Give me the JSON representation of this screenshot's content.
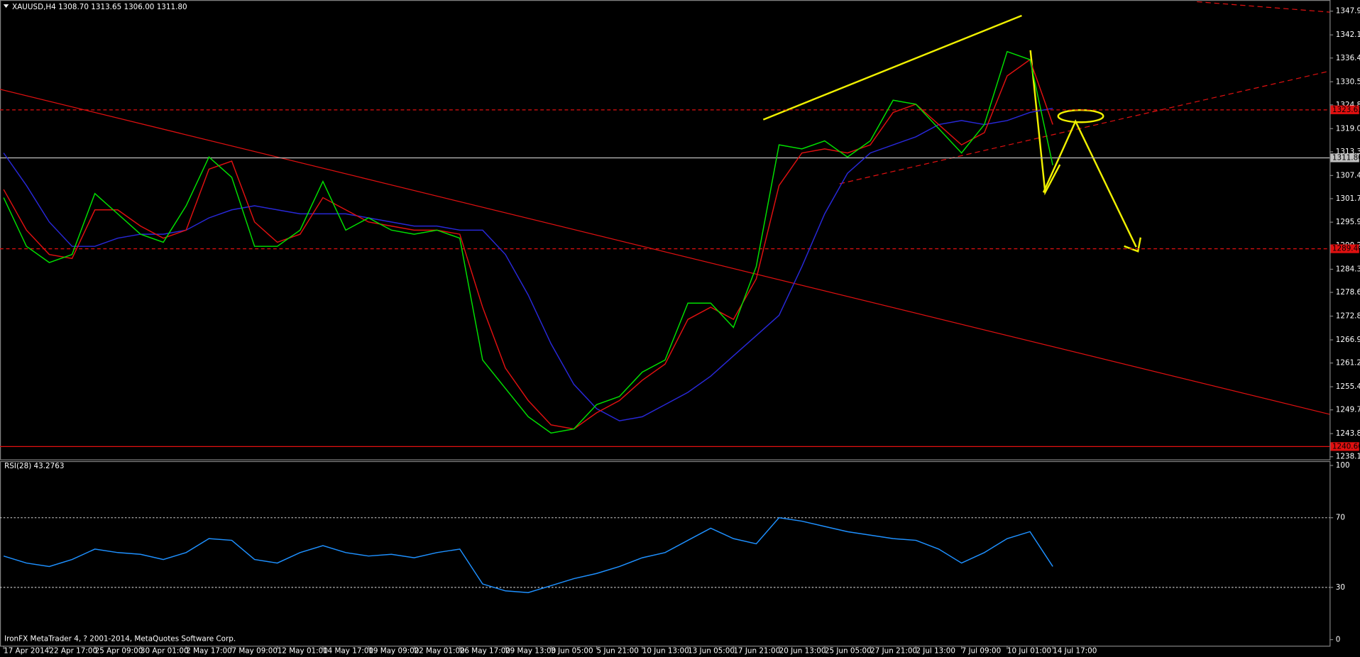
{
  "chart_data": [
    {
      "type": "line",
      "title": "XAUUSD,H4  1308.70 1313.65 1306.00 1311.80",
      "footer": "IronFX MetaTrader 4, ? 2001-2014, MetaQuotes Software Corp.",
      "xlim": [
        -0.08,
        29.07
      ],
      "xticks": [
        {
          "value": 0,
          "label": "17 Apr 2014"
        },
        {
          "value": 1,
          "label": "22 Apr 17:00"
        },
        {
          "value": 2,
          "label": "25 Apr 09:00"
        },
        {
          "value": 3,
          "label": "30 Apr 01:00"
        },
        {
          "value": 4,
          "label": "2 May 17:00"
        },
        {
          "value": 5,
          "label": "7 May 09:00"
        },
        {
          "value": 6,
          "label": "12 May 01:00"
        },
        {
          "value": 7,
          "label": "14 May 17:00"
        },
        {
          "value": 8,
          "label": "19 May 09:00"
        },
        {
          "value": 9,
          "label": "22 May 01:00"
        },
        {
          "value": 10,
          "label": "26 May 17:00"
        },
        {
          "value": 11,
          "label": "29 May 13:00"
        },
        {
          "value": 12,
          "label": "3 Jun 05:00"
        },
        {
          "value": 13,
          "label": "5 Jun 21:00"
        },
        {
          "value": 14,
          "label": "10 Jun 13:00"
        },
        {
          "value": 15,
          "label": "13 Jun 05:00"
        },
        {
          "value": 16,
          "label": "17 Jun 21:00"
        },
        {
          "value": 17,
          "label": "20 Jun 13:00"
        },
        {
          "value": 18,
          "label": "25 Jun 05:00"
        },
        {
          "value": 19,
          "label": "27 Jun 21:00"
        },
        {
          "value": 20,
          "label": "2 Jul 13:00"
        },
        {
          "value": 21,
          "label": "7 Jul 09:00"
        },
        {
          "value": 22,
          "label": "10 Jul 01:00"
        },
        {
          "value": 23,
          "label": "14 Jul 17:00"
        }
      ],
      "ylim": [
        1237.5,
        1350.7
      ],
      "yticks": [
        {
          "value": 1347.95,
          "label": "1347.95"
        },
        {
          "value": 1342.1,
          "label": "1342.10"
        },
        {
          "value": 1336.4,
          "label": "1336.40"
        },
        {
          "value": 1330.55,
          "label": "1330.55"
        },
        {
          "value": 1324.85,
          "label": "1324.85"
        },
        {
          "value": 1319,
          "label": "1319.00"
        },
        {
          "value": 1313.3,
          "label": "1313.30"
        },
        {
          "value": 1307.45,
          "label": "1307.45"
        },
        {
          "value": 1301.75,
          "label": "1301.75"
        },
        {
          "value": 1295.95,
          "label": "1295.95"
        },
        {
          "value": 1290.2,
          "label": "1290.20"
        },
        {
          "value": 1284.35,
          "label": "1284.35"
        },
        {
          "value": 1278.65,
          "label": "1278.65"
        },
        {
          "value": 1272.8,
          "label": "1272.80"
        },
        {
          "value": 1266.95,
          "label": "1266.95"
        },
        {
          "value": 1261.25,
          "label": "1261.25"
        },
        {
          "value": 1255.4,
          "label": "1255.40"
        },
        {
          "value": 1249.7,
          "label": "1249.70"
        },
        {
          "value": 1243.85,
          "label": "1243.85"
        },
        {
          "value": 1238.15,
          "label": "1238.15"
        }
      ],
      "levels": [
        {
          "value": 1323.63,
          "label": "1323.63",
          "color": "#e01010",
          "dashed": true,
          "label_color": "#000"
        },
        {
          "value": 1311.8,
          "label": "1311.80",
          "color": "#c0c0c0",
          "dashed": false,
          "label_color": "#000"
        },
        {
          "value": 1289.4,
          "label": "1289.40",
          "color": "#e01010",
          "dashed": true,
          "label_color": "#000"
        },
        {
          "value": 1240.66,
          "label": "1240.66",
          "color": "#e01010",
          "dashed": false,
          "label_color": "#000"
        }
      ],
      "x": [
        0,
        0.5,
        1,
        1.5,
        2,
        2.5,
        3,
        3.5,
        4,
        4.5,
        5,
        5.5,
        6,
        6.5,
        7,
        7.5,
        8,
        8.5,
        9,
        9.5,
        10,
        10.5,
        11,
        11.5,
        12,
        12.5,
        13,
        13.5,
        14,
        14.5,
        15,
        15.5,
        16,
        16.5,
        17,
        17.5,
        18,
        18.5,
        19,
        19.5,
        20,
        20.5,
        21,
        21.5,
        22,
        22.5,
        23
      ],
      "series": [
        {
          "color": "#2828d8",
          "values": [
            1313,
            1305,
            1296,
            1290,
            1290,
            1292,
            1293,
            1293,
            1294,
            1297,
            1299,
            1300,
            1299,
            1298,
            1298,
            1298,
            1297,
            1296,
            1295,
            1295,
            1294,
            1294,
            1288,
            1278,
            1266,
            1256,
            1250,
            1247,
            1248,
            1251,
            1254,
            1258,
            1263,
            1268,
            1273,
            1285,
            1298,
            1308,
            1313,
            1315,
            1317,
            1320,
            1321,
            1320,
            1321,
            1323,
            1324
          ]
        },
        {
          "color": "#e01010",
          "values": [
            1304,
            1294,
            1288,
            1287,
            1299,
            1299,
            1295,
            1292,
            1294,
            1309,
            1311,
            1296,
            1291,
            1293,
            1302,
            1299,
            1296,
            1295,
            1294,
            1294,
            1293,
            1275,
            1260,
            1252,
            1246,
            1245,
            1249,
            1252,
            1257,
            1261,
            1272,
            1275,
            1272,
            1282,
            1305,
            1313,
            1314,
            1313,
            1315,
            1323,
            1325,
            1320,
            1315,
            1318,
            1332,
            1336,
            1320
          ]
        },
        {
          "color": "#00e000",
          "values": [
            1302,
            1290,
            1286,
            1288,
            1303,
            1298,
            1293,
            1291,
            1300,
            1312,
            1307,
            1290,
            1290,
            1294,
            1306,
            1294,
            1297,
            1294,
            1293,
            1294,
            1292,
            1262,
            1255,
            1248,
            1244,
            1245,
            1251,
            1253,
            1259,
            1262,
            1276,
            1276,
            1270,
            1285,
            1315,
            1314,
            1316,
            1312,
            1316,
            1326,
            1325,
            1319,
            1313,
            1320,
            1338,
            1336,
            1310
          ]
        }
      ]
    },
    {
      "type": "line",
      "title": "RSI(28) 43.2763",
      "xlim": [
        -0.08,
        29.07
      ],
      "ylim": [
        -3.5,
        102.5
      ],
      "yticks": [
        0,
        30,
        70,
        100
      ],
      "levels": [
        {
          "value": 30
        },
        {
          "value": 70
        }
      ],
      "x": [
        0,
        0.5,
        1,
        1.5,
        2,
        2.5,
        3,
        3.5,
        4,
        4.5,
        5,
        5.5,
        6,
        6.5,
        7,
        7.5,
        8,
        8.5,
        9,
        9.5,
        10,
        10.5,
        11,
        11.5,
        12,
        12.5,
        13,
        13.5,
        14,
        14.5,
        15,
        15.5,
        16,
        16.5,
        17,
        17.5,
        18,
        18.5,
        19,
        19.5,
        20,
        20.5,
        21,
        21.5,
        22,
        22.5,
        23
      ],
      "series": [
        {
          "color": "#1e90ff",
          "values": [
            48,
            44,
            42,
            46,
            52,
            50,
            49,
            46,
            50,
            58,
            57,
            46,
            44,
            50,
            54,
            50,
            48,
            49,
            47,
            50,
            52,
            32,
            28,
            27,
            31,
            35,
            38,
            42,
            47,
            50,
            57,
            64,
            58,
            55,
            70,
            68,
            65,
            62,
            60,
            58,
            57,
            52,
            44,
            50,
            58,
            62,
            42
          ]
        }
      ]
    }
  ]
}
